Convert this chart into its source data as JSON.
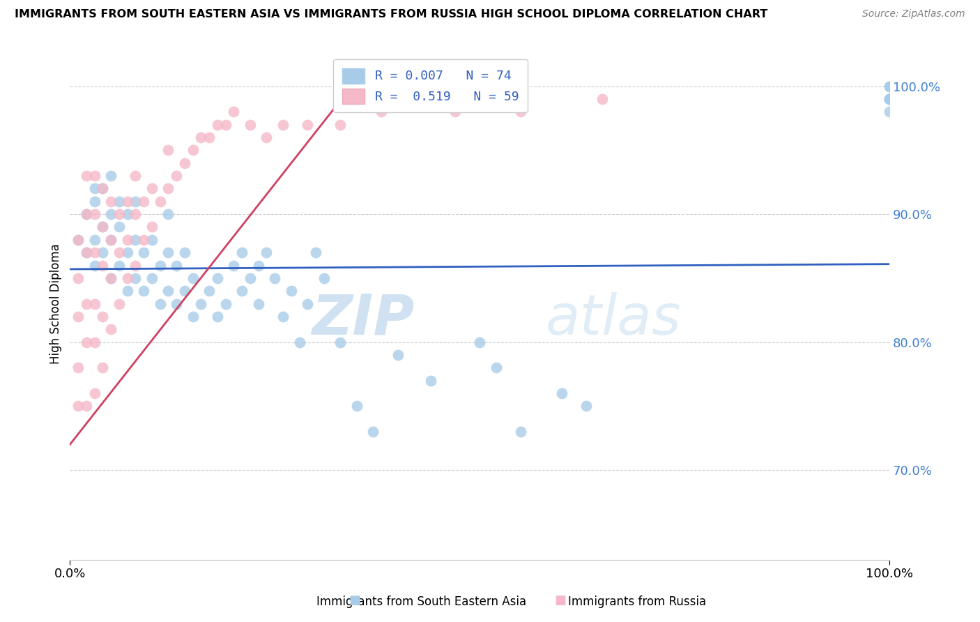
{
  "title": "IMMIGRANTS FROM SOUTH EASTERN ASIA VS IMMIGRANTS FROM RUSSIA HIGH SCHOOL DIPLOMA CORRELATION CHART",
  "source": "Source: ZipAtlas.com",
  "ylabel": "High School Diploma",
  "color_blue": "#a8cce8",
  "color_pink": "#f4b8c8",
  "color_blue_line": "#3060c0",
  "color_pink_line": "#d04060",
  "color_ytick": "#4080d0",
  "watermark_zip": "ZIP",
  "watermark_atlas": "atlas",
  "legend_line1": "R = 0.007   N = 74",
  "legend_line2": "R =  0.519   N = 59",
  "x_min": 0.0,
  "x_max": 1.0,
  "y_min": 0.63,
  "y_max": 1.03,
  "y_ticks": [
    0.7,
    0.8,
    0.9,
    1.0
  ],
  "y_tick_labels": [
    "70.0%",
    "80.0%",
    "90.0%",
    "100.0%"
  ],
  "blue_trend_y_intercept": 0.857,
  "blue_trend_slope": 0.004,
  "pink_trend_x0": 0.0,
  "pink_trend_x1": 0.35,
  "pink_trend_y0": 0.72,
  "pink_trend_y1": 1.005,
  "blue_x": [
    0.01,
    0.02,
    0.02,
    0.03,
    0.03,
    0.03,
    0.03,
    0.04,
    0.04,
    0.04,
    0.05,
    0.05,
    0.05,
    0.05,
    0.06,
    0.06,
    0.06,
    0.07,
    0.07,
    0.07,
    0.08,
    0.08,
    0.08,
    0.09,
    0.09,
    0.1,
    0.1,
    0.11,
    0.11,
    0.12,
    0.12,
    0.12,
    0.13,
    0.13,
    0.14,
    0.14,
    0.15,
    0.15,
    0.16,
    0.17,
    0.18,
    0.18,
    0.19,
    0.2,
    0.21,
    0.21,
    0.22,
    0.23,
    0.23,
    0.24,
    0.25,
    0.26,
    0.27,
    0.28,
    0.29,
    0.3,
    0.31,
    0.33,
    0.35,
    0.37,
    0.4,
    0.44,
    0.5,
    0.52,
    0.55,
    0.6,
    0.63,
    1.0,
    1.0,
    1.0,
    1.0,
    1.0,
    1.0,
    1.0
  ],
  "blue_y": [
    0.88,
    0.87,
    0.9,
    0.86,
    0.88,
    0.91,
    0.92,
    0.87,
    0.89,
    0.92,
    0.85,
    0.88,
    0.9,
    0.93,
    0.86,
    0.89,
    0.91,
    0.84,
    0.87,
    0.9,
    0.85,
    0.88,
    0.91,
    0.84,
    0.87,
    0.85,
    0.88,
    0.83,
    0.86,
    0.84,
    0.87,
    0.9,
    0.83,
    0.86,
    0.84,
    0.87,
    0.82,
    0.85,
    0.83,
    0.84,
    0.82,
    0.85,
    0.83,
    0.86,
    0.84,
    0.87,
    0.85,
    0.83,
    0.86,
    0.87,
    0.85,
    0.82,
    0.84,
    0.8,
    0.83,
    0.87,
    0.85,
    0.8,
    0.75,
    0.73,
    0.79,
    0.77,
    0.8,
    0.78,
    0.73,
    0.76,
    0.75,
    0.99,
    0.99,
    1.0,
    0.99,
    0.98,
    0.99,
    1.0
  ],
  "pink_x": [
    0.01,
    0.01,
    0.01,
    0.01,
    0.01,
    0.02,
    0.02,
    0.02,
    0.02,
    0.02,
    0.02,
    0.03,
    0.03,
    0.03,
    0.03,
    0.03,
    0.03,
    0.04,
    0.04,
    0.04,
    0.04,
    0.04,
    0.05,
    0.05,
    0.05,
    0.05,
    0.06,
    0.06,
    0.06,
    0.07,
    0.07,
    0.07,
    0.08,
    0.08,
    0.08,
    0.09,
    0.09,
    0.1,
    0.1,
    0.11,
    0.12,
    0.12,
    0.13,
    0.14,
    0.15,
    0.16,
    0.17,
    0.18,
    0.19,
    0.2,
    0.22,
    0.24,
    0.26,
    0.29,
    0.33,
    0.38,
    0.47,
    0.55,
    0.65
  ],
  "pink_y": [
    0.75,
    0.78,
    0.82,
    0.85,
    0.88,
    0.75,
    0.8,
    0.83,
    0.87,
    0.9,
    0.93,
    0.76,
    0.8,
    0.83,
    0.87,
    0.9,
    0.93,
    0.78,
    0.82,
    0.86,
    0.89,
    0.92,
    0.81,
    0.85,
    0.88,
    0.91,
    0.83,
    0.87,
    0.9,
    0.85,
    0.88,
    0.91,
    0.86,
    0.9,
    0.93,
    0.88,
    0.91,
    0.89,
    0.92,
    0.91,
    0.92,
    0.95,
    0.93,
    0.94,
    0.95,
    0.96,
    0.96,
    0.97,
    0.97,
    0.98,
    0.97,
    0.96,
    0.97,
    0.97,
    0.97,
    0.98,
    0.98,
    0.98,
    0.99
  ]
}
